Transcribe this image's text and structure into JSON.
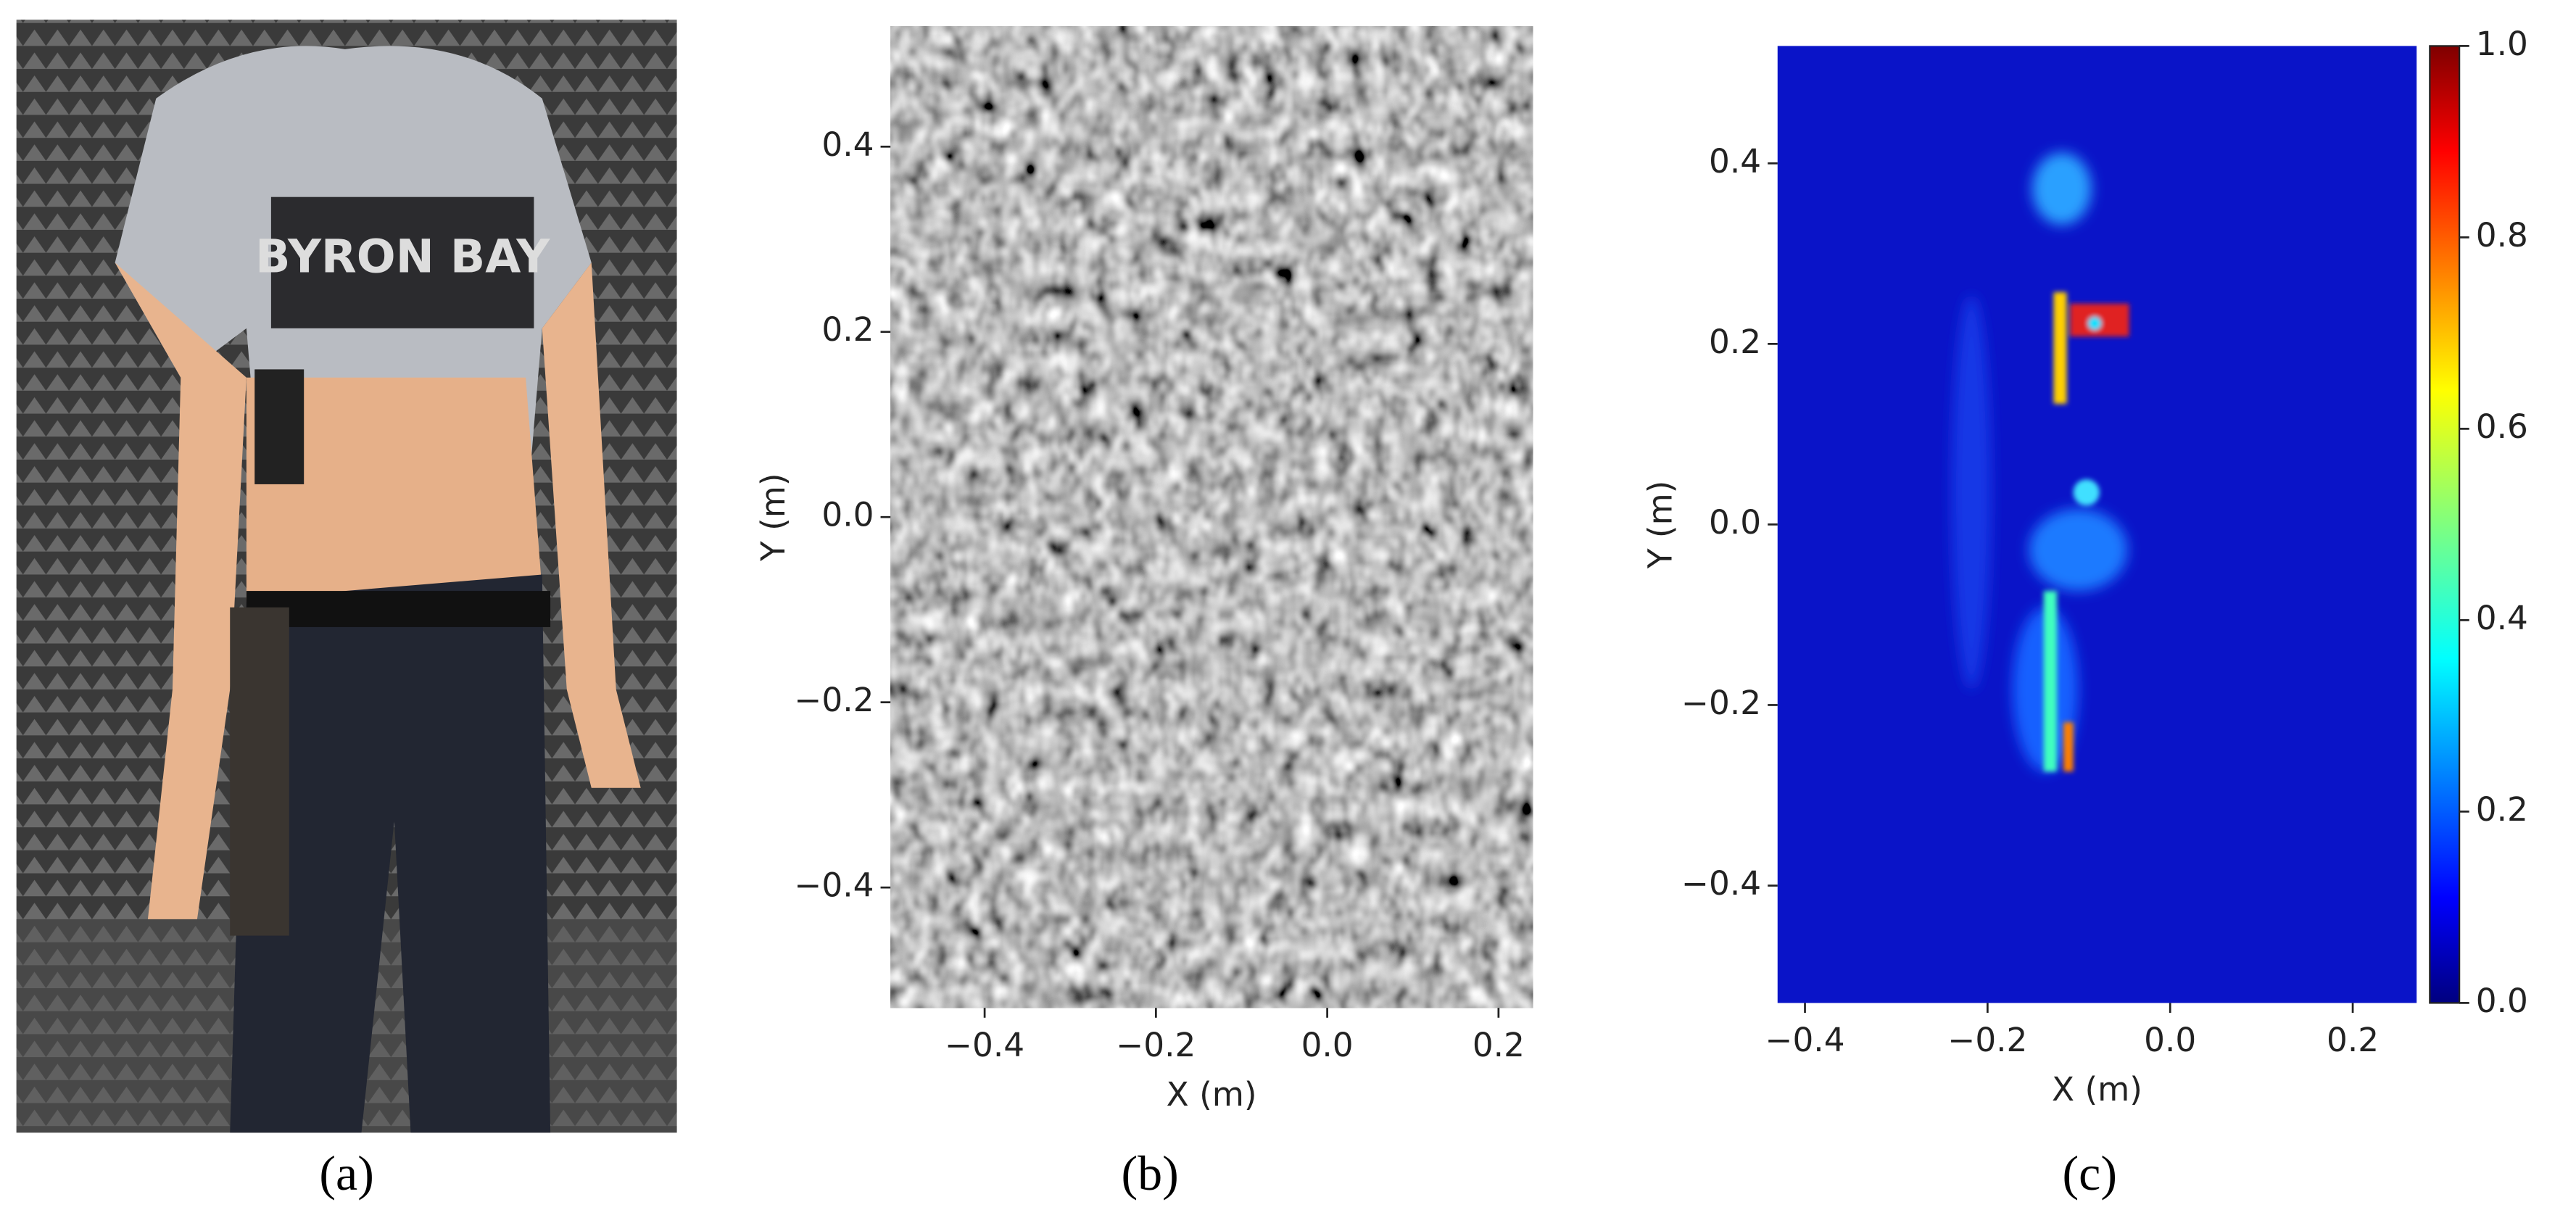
{
  "panels": [
    {
      "label": "(a)",
      "photo_text": "BYRON BAY"
    },
    {
      "label": "(b)",
      "x_label": "X (m)",
      "y_label": "Y (m)",
      "xlim": [
        -0.51,
        0.24
      ],
      "ylim": [
        -0.53,
        0.53
      ],
      "xticks": [
        {
          "value": -0.4,
          "label": "−0.4"
        },
        {
          "value": -0.2,
          "label": "−0.2"
        },
        {
          "value": 0,
          "label": "0.0"
        },
        0.2
      ],
      "yticks": [
        {
          "value": -0.4,
          "label": "−0.4"
        },
        {
          "value": -0.2,
          "label": "−0.2"
        },
        {
          "value": 0,
          "label": "0.0"
        },
        0.2,
        0.4
      ]
    },
    {
      "label": "(c)",
      "x_label": "X (m)",
      "y_label": "Y (m)",
      "xlim": [
        -0.43,
        0.27
      ],
      "ylim": [
        -0.53,
        0.53
      ],
      "xticks": [
        {
          "value": -0.4,
          "label": "−0.4"
        },
        {
          "value": -0.2,
          "label": "−0.2"
        },
        {
          "value": 0,
          "label": "0.0"
        },
        0.2
      ],
      "yticks": [
        {
          "value": -0.4,
          "label": "−0.4"
        },
        {
          "value": -0.2,
          "label": "−0.2"
        },
        {
          "value": 0,
          "label": "0.0"
        },
        0.2,
        0.4
      ],
      "colorbar": {
        "lim": [
          0,
          1
        ],
        "ticks": [
          {
            "value": 0,
            "label": "0.0"
          },
          0.2,
          0.4,
          0.6,
          0.8,
          {
            "value": 1,
            "label": "1.0"
          }
        ]
      }
    }
  ]
}
